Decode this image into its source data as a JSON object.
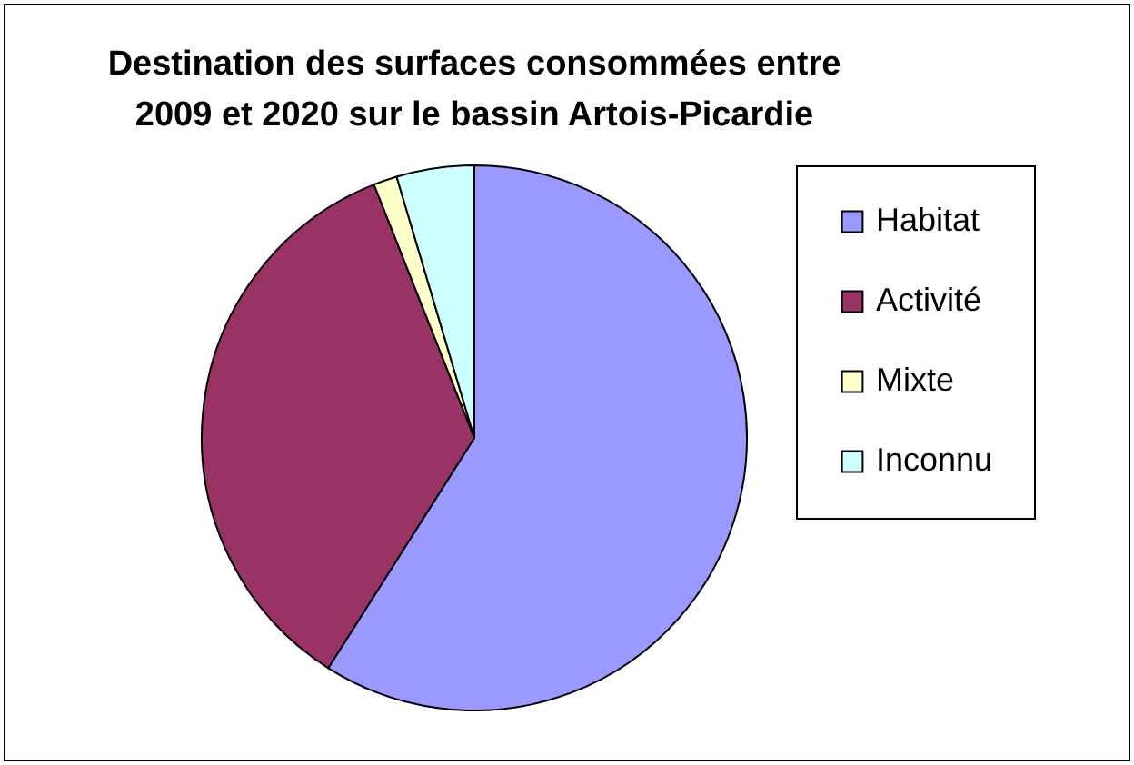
{
  "chart_data": {
    "type": "pie",
    "title": "Destination des surfaces consommées entre\n2009 et 2020 sur le bassin Artois-Picardie",
    "categories": [
      "Habitat",
      "Activité",
      "Mixte",
      "Inconnu"
    ],
    "values": [
      59,
      35,
      1.4,
      4.6
    ],
    "colors": [
      "#9999ff",
      "#993366",
      "#ffffcc",
      "#ccffff"
    ],
    "legend": "right"
  }
}
